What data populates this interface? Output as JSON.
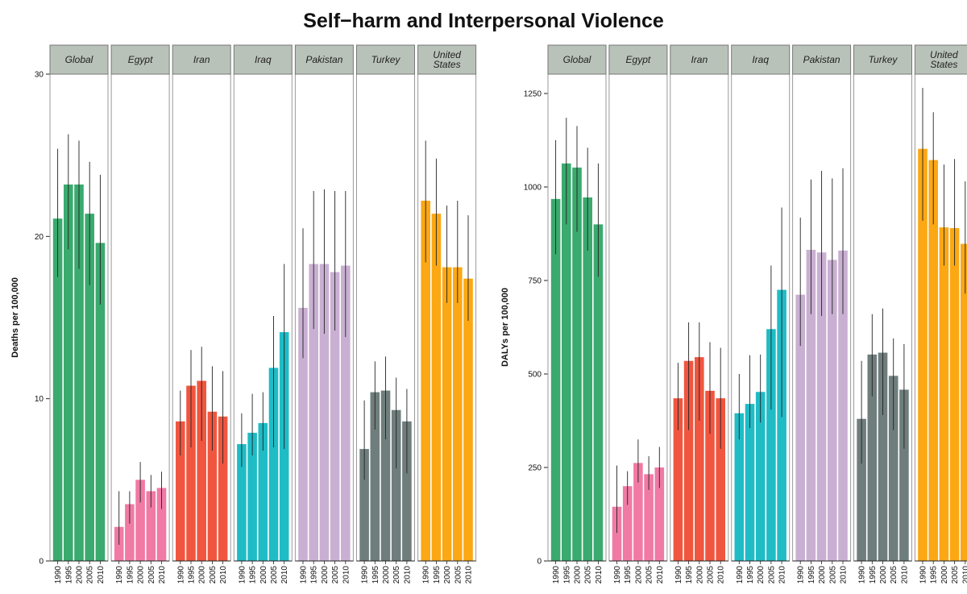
{
  "title": "Self−harm and Interpersonal Violence",
  "colors": {
    "Global": "#3aaa6e",
    "Egypt": "#f07aa4",
    "Iran": "#f0563f",
    "Iraq": "#1fbcc6",
    "Pakistan": "#c9b0d2",
    "Turkey": "#6f7e7d",
    "United States": "#fba814",
    "strip_bg": "#b9c2b9",
    "error_bar": "#222222"
  },
  "chart_data": [
    {
      "type": "bar",
      "ylabel": "Deaths per 100,000",
      "ylim": [
        0,
        30
      ],
      "yticks": [
        0,
        10,
        20,
        30
      ],
      "years": [
        "1990",
        "1995",
        "2000",
        "2005",
        "2010"
      ],
      "panels": [
        {
          "name": "Global",
          "label_lines": [
            "Global"
          ],
          "values": [
            21.1,
            23.2,
            23.2,
            21.4,
            19.6
          ],
          "lower": [
            17.5,
            19.2,
            18.0,
            17.0,
            15.8
          ],
          "upper": [
            25.4,
            26.3,
            25.9,
            24.6,
            23.8
          ]
        },
        {
          "name": "Egypt",
          "label_lines": [
            "Egypt"
          ],
          "values": [
            2.1,
            3.5,
            5.0,
            4.3,
            4.5
          ],
          "lower": [
            1.0,
            2.3,
            3.6,
            3.3,
            3.2
          ],
          "upper": [
            4.3,
            4.3,
            6.1,
            5.3,
            5.5
          ]
        },
        {
          "name": "Iran",
          "label_lines": [
            "Iran"
          ],
          "values": [
            8.6,
            10.8,
            11.1,
            9.2,
            8.9
          ],
          "lower": [
            6.5,
            7.0,
            7.4,
            6.8,
            6.0
          ],
          "upper": [
            10.5,
            13.0,
            13.2,
            12.0,
            11.7
          ]
        },
        {
          "name": "Iraq",
          "label_lines": [
            "Iraq"
          ],
          "values": [
            7.2,
            7.9,
            8.5,
            11.9,
            14.1
          ],
          "lower": [
            5.8,
            6.5,
            6.8,
            7.0,
            6.9
          ],
          "upper": [
            9.1,
            10.3,
            10.4,
            15.1,
            18.3
          ]
        },
        {
          "name": "Pakistan",
          "label_lines": [
            "Pakistan"
          ],
          "values": [
            15.6,
            18.3,
            18.3,
            17.8,
            18.2
          ],
          "lower": [
            12.5,
            14.3,
            14.0,
            14.2,
            13.8
          ],
          "upper": [
            20.5,
            22.8,
            22.9,
            22.8,
            22.8
          ]
        },
        {
          "name": "Turkey",
          "label_lines": [
            "Turkey"
          ],
          "values": [
            6.9,
            10.4,
            10.5,
            9.3,
            8.6
          ],
          "lower": [
            5.0,
            8.1,
            7.5,
            5.7,
            5.4
          ],
          "upper": [
            9.9,
            12.3,
            12.6,
            11.3,
            10.6
          ]
        },
        {
          "name": "United States",
          "label_lines": [
            "United",
            "States"
          ],
          "values": [
            22.2,
            21.4,
            18.1,
            18.1,
            17.4
          ],
          "lower": [
            18.4,
            18.2,
            15.9,
            15.9,
            14.8
          ],
          "upper": [
            25.9,
            24.8,
            21.9,
            22.2,
            21.3
          ]
        }
      ]
    },
    {
      "type": "bar",
      "ylabel": "DALYs per 100,000",
      "ylim": [
        0,
        1250
      ],
      "yticks": [
        0,
        250,
        500,
        750,
        1000,
        1250
      ],
      "years": [
        "1990",
        "1995",
        "2000",
        "2005",
        "2010"
      ],
      "panels": [
        {
          "name": "Global",
          "label_lines": [
            "Global"
          ],
          "values": [
            968,
            1063,
            1052,
            972,
            900
          ],
          "lower": [
            820,
            900,
            880,
            830,
            760
          ],
          "upper": [
            1125,
            1185,
            1163,
            1105,
            1063
          ]
        },
        {
          "name": "Egypt",
          "label_lines": [
            "Egypt"
          ],
          "values": [
            145,
            200,
            262,
            232,
            250
          ],
          "lower": [
            75,
            150,
            210,
            190,
            195
          ],
          "upper": [
            255,
            240,
            325,
            280,
            305
          ]
        },
        {
          "name": "Iran",
          "label_lines": [
            "Iran"
          ],
          "values": [
            435,
            535,
            545,
            455,
            435
          ],
          "lower": [
            350,
            350,
            375,
            340,
            300
          ],
          "upper": [
            530,
            638,
            638,
            585,
            570
          ]
        },
        {
          "name": "Iraq",
          "label_lines": [
            "Iraq"
          ],
          "values": [
            395,
            420,
            452,
            620,
            725
          ],
          "lower": [
            325,
            355,
            370,
            405,
            385
          ],
          "upper": [
            500,
            550,
            552,
            790,
            945
          ]
        },
        {
          "name": "Pakistan",
          "label_lines": [
            "Pakistan"
          ],
          "values": [
            712,
            832,
            825,
            805,
            830
          ],
          "lower": [
            575,
            660,
            655,
            660,
            660
          ],
          "upper": [
            918,
            1020,
            1043,
            1023,
            1050
          ]
        },
        {
          "name": "Turkey",
          "label_lines": [
            "Turkey"
          ],
          "values": [
            380,
            552,
            557,
            495,
            458
          ],
          "lower": [
            260,
            440,
            390,
            350,
            300
          ],
          "upper": [
            535,
            660,
            675,
            595,
            580
          ]
        },
        {
          "name": "United States",
          "label_lines": [
            "United",
            "States"
          ],
          "values": [
            1102,
            1072,
            892,
            890,
            848
          ],
          "lower": [
            910,
            900,
            790,
            790,
            715
          ],
          "upper": [
            1265,
            1200,
            1060,
            1075,
            1015
          ]
        }
      ]
    }
  ]
}
